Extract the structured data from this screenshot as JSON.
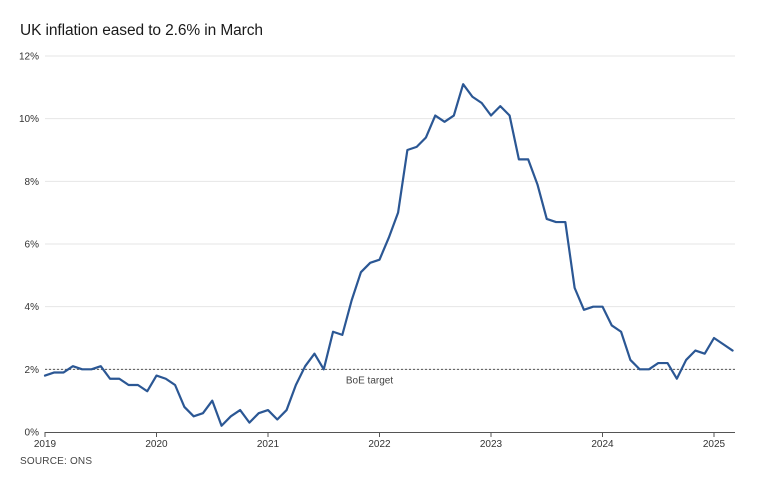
{
  "chart_data": {
    "type": "line",
    "title": "UK inflation eased to 2.6% in March",
    "source": "SOURCE: ONS",
    "xlabel": "",
    "ylabel": "",
    "x_range": [
      "2019-01",
      "2025-03"
    ],
    "ylim": [
      0,
      12
    ],
    "y_ticks": [
      {
        "value": 0,
        "label": "0%"
      },
      {
        "value": 2,
        "label": "2%"
      },
      {
        "value": 4,
        "label": "4%"
      },
      {
        "value": 6,
        "label": "6%"
      },
      {
        "value": 8,
        "label": "8%"
      },
      {
        "value": 10,
        "label": "10%"
      },
      {
        "value": 12,
        "label": "12%"
      }
    ],
    "x_ticks": [
      {
        "value": "2019-01",
        "label": "2019"
      },
      {
        "value": "2020-01",
        "label": "2020"
      },
      {
        "value": "2021-01",
        "label": "2021"
      },
      {
        "value": "2022-01",
        "label": "2022"
      },
      {
        "value": "2023-01",
        "label": "2023"
      },
      {
        "value": "2024-01",
        "label": "2024"
      },
      {
        "value": "2025-01",
        "label": "2025"
      }
    ],
    "grid": "horizontal",
    "reference_line": {
      "value": 2,
      "label": "BoE target",
      "label_x": "2022-01",
      "style": "dotted"
    },
    "color": "#2b5794",
    "series": [
      {
        "x": [
          "2019-01",
          "2019-02",
          "2019-03",
          "2019-04",
          "2019-05",
          "2019-06",
          "2019-07",
          "2019-08",
          "2019-09",
          "2019-10",
          "2019-11",
          "2019-12",
          "2020-01",
          "2020-02",
          "2020-03",
          "2020-04",
          "2020-05",
          "2020-06",
          "2020-07",
          "2020-08",
          "2020-09",
          "2020-10",
          "2020-11",
          "2020-12",
          "2021-01",
          "2021-02",
          "2021-03",
          "2021-04",
          "2021-05",
          "2021-06",
          "2021-07",
          "2021-08",
          "2021-09",
          "2021-10",
          "2021-11",
          "2021-12",
          "2022-01",
          "2022-02",
          "2022-03",
          "2022-04",
          "2022-05",
          "2022-06",
          "2022-07",
          "2022-08",
          "2022-09",
          "2022-10",
          "2022-11",
          "2022-12",
          "2023-01",
          "2023-02",
          "2023-03",
          "2023-04",
          "2023-05",
          "2023-06",
          "2023-07",
          "2023-08",
          "2023-09",
          "2023-10",
          "2023-11",
          "2023-12",
          "2024-01",
          "2024-02",
          "2024-03",
          "2024-04",
          "2024-05",
          "2024-06",
          "2024-07",
          "2024-08",
          "2024-09",
          "2024-10",
          "2024-11",
          "2024-12",
          "2025-01",
          "2025-02",
          "2025-03"
        ],
        "values": [
          1.8,
          1.9,
          1.9,
          2.1,
          2.0,
          2.0,
          2.1,
          1.7,
          1.7,
          1.5,
          1.5,
          1.3,
          1.8,
          1.7,
          1.5,
          0.8,
          0.5,
          0.6,
          1.0,
          0.2,
          0.5,
          0.7,
          0.3,
          0.6,
          0.7,
          0.4,
          0.7,
          1.5,
          2.1,
          2.5,
          2.0,
          3.2,
          3.1,
          4.2,
          5.1,
          5.4,
          5.5,
          6.2,
          7.0,
          9.0,
          9.1,
          9.4,
          10.1,
          9.9,
          10.1,
          11.1,
          10.7,
          10.5,
          10.1,
          10.4,
          10.1,
          8.7,
          8.7,
          7.9,
          6.8,
          6.7,
          6.7,
          4.6,
          3.9,
          4.0,
          4.0,
          3.4,
          3.2,
          2.3,
          2.0,
          2.0,
          2.2,
          2.2,
          1.7,
          2.3,
          2.6,
          2.5,
          3.0,
          2.8,
          2.6
        ]
      }
    ]
  }
}
